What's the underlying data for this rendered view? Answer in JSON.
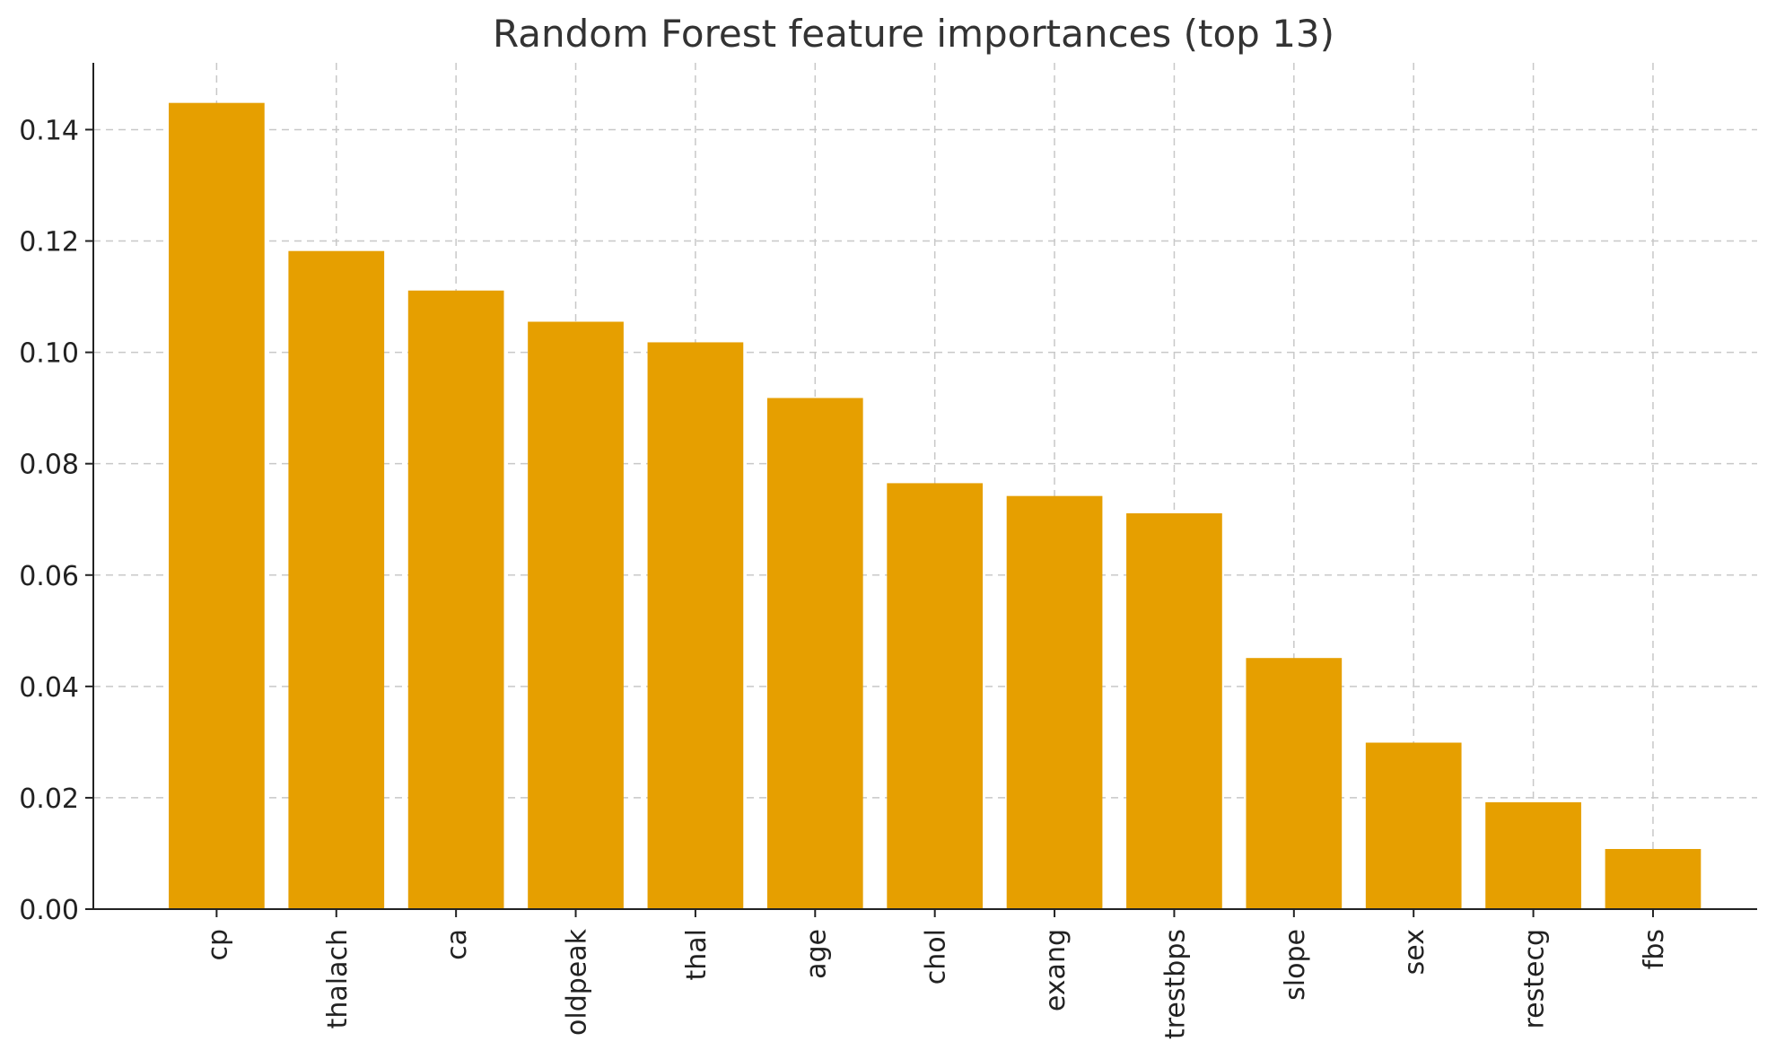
{
  "chart_data": {
    "type": "bar",
    "title": "Random Forest feature importances (top 13)",
    "xlabel": "",
    "ylabel": "",
    "categories": [
      "cp",
      "thalach",
      "ca",
      "oldpeak",
      "thal",
      "age",
      "chol",
      "exang",
      "trestbps",
      "slope",
      "sex",
      "restecg",
      "fbs"
    ],
    "values": [
      0.1448,
      0.1182,
      0.1111,
      0.1055,
      0.1018,
      0.0918,
      0.0765,
      0.0742,
      0.0711,
      0.0451,
      0.0299,
      0.0192,
      0.0108
    ],
    "ylim": [
      0,
      0.152
    ],
    "yticks": [
      0.0,
      0.02,
      0.04,
      0.06,
      0.08,
      0.1,
      0.12,
      0.14
    ],
    "ytick_labels": [
      "0.00",
      "0.02",
      "0.04",
      "0.06",
      "0.08",
      "0.10",
      "0.12",
      "0.14"
    ],
    "grid": true,
    "bar_color": "#E69F00"
  }
}
